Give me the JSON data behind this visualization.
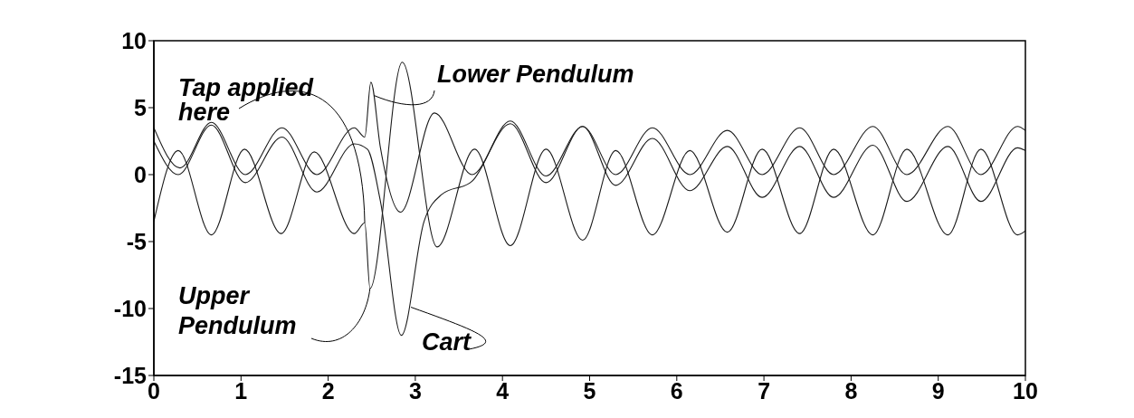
{
  "chart_data": {
    "type": "line",
    "xlim": [
      0,
      10
    ],
    "xticks": [
      0,
      1,
      2,
      3,
      4,
      5,
      6,
      7,
      8,
      9,
      10
    ],
    "ylim": [
      -15,
      10
    ],
    "yticks": [
      -15,
      -10,
      -5,
      0,
      5,
      10
    ],
    "grid": false,
    "line_style": "solid",
    "series": [
      {
        "color": "#1a1a1a",
        "x": [
          0,
          0.3,
          0.66,
          1.05,
          1.47,
          1.87,
          2.3,
          2.42,
          2.49,
          2.6,
          2.83,
          3.22,
          3.65,
          4.09,
          4.5,
          4.92,
          5.3,
          5.72,
          6.15,
          6.58,
          6.98,
          7.41,
          7.8,
          8.25,
          8.64,
          9.11,
          9.49,
          9.91,
          10
        ],
        "values": [
          3.5,
          0.5,
          3.9,
          0,
          3.5,
          0,
          3.5,
          2.8,
          6.9,
          2,
          -2.8,
          4.6,
          0,
          4,
          -0.1,
          3.6,
          0,
          3.5,
          0,
          3.3,
          0,
          3.5,
          0,
          3.6,
          0,
          3.6,
          0,
          3.6,
          3.3
        ]
      },
      {
        "color": "#1a1a1a",
        "x": [
          0,
          0.28,
          0.66,
          1.05,
          1.47,
          1.87,
          2.3,
          2.45,
          2.6,
          2.84,
          3.1,
          3.3,
          3.65,
          4.09,
          4.5,
          4.92,
          5.3,
          5.72,
          6.15,
          6.58,
          6.98,
          7.41,
          7.8,
          8.25,
          8.64,
          9.11,
          9.49,
          9.91,
          10
        ],
        "values": [
          2.5,
          0,
          3.7,
          -0.6,
          2.8,
          -1.3,
          2.3,
          1.9,
          -2,
          -12,
          -3.5,
          -1.5,
          -0.5,
          3.8,
          -0.6,
          3.6,
          -0.8,
          2.7,
          -1.2,
          2.1,
          -1.7,
          2.1,
          -1.7,
          2.2,
          -2,
          2.1,
          -2,
          2,
          1.8
        ]
      },
      {
        "color": "#1a1a1a",
        "x": [
          0,
          0.28,
          0.66,
          1.04,
          1.46,
          1.84,
          2.3,
          2.42,
          2.48,
          2.85,
          3.25,
          3.68,
          4.09,
          4.5,
          4.92,
          5.3,
          5.72,
          6.15,
          6.58,
          6.98,
          7.41,
          7.8,
          8.25,
          8.64,
          9.11,
          9.49,
          9.91,
          10
        ],
        "values": [
          -3.5,
          1.8,
          -4.5,
          1.9,
          -4.4,
          1.7,
          -4.4,
          -3.6,
          -8.5,
          8.4,
          -5.4,
          1.9,
          -5.3,
          1.9,
          -4.9,
          1.8,
          -4.5,
          1.8,
          -4.3,
          1.9,
          -4.4,
          1.9,
          -4.5,
          1.9,
          -4.5,
          1.9,
          -4.5,
          -4.2
        ]
      }
    ],
    "annotations": [
      {
        "text": "Tap applied here",
        "x": 2.42,
        "y": -3.6
      },
      {
        "text": "Lower Pendulum",
        "x": 2.53,
        "y": 5.9
      },
      {
        "text": "Upper Pendulum",
        "x": 2.48,
        "y": -8.5
      },
      {
        "text": "Cart",
        "x": 2.95,
        "y": -9.9
      }
    ]
  }
}
